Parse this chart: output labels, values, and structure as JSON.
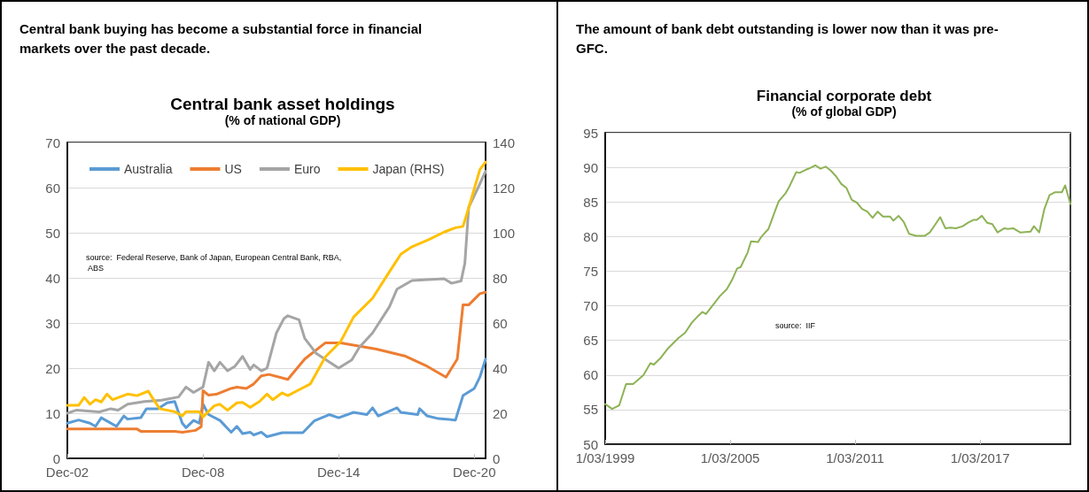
{
  "chart_data": [
    {
      "type": "line",
      "title": "Central bank asset holdings",
      "subtitle": "(% of national GDP)",
      "annotations": [
        "Central bank buying has become a substantial force in financial markets over the past decade.",
        "source:  Federal Reserve, Bank of Japan, European Central Bank, RBA, ABS"
      ],
      "xlim": [
        "2002-12",
        "2021-06"
      ],
      "xticks": [
        {
          "value": "2002-12",
          "label": "Dec-02"
        },
        {
          "value": "2008-12",
          "label": "Dec-08"
        },
        {
          "value": "2014-12",
          "label": "Dec-14"
        },
        {
          "value": "2020-12",
          "label": "Dec-20"
        }
      ],
      "ylim": [
        0,
        70
      ],
      "yticks": [
        0,
        10,
        20,
        30,
        40,
        50,
        60,
        70
      ],
      "y2lim": [
        0,
        140
      ],
      "y2ticks": [
        0,
        20,
        40,
        60,
        80,
        100,
        120,
        140
      ],
      "grid": "y",
      "legend": "top",
      "marker": "none",
      "line_style": "solid",
      "series": [
        {
          "name": "Australia",
          "color": "#5b9bd5",
          "x": [
            "2002-12",
            "2003-06",
            "2003-12",
            "2004-03",
            "2004-06",
            "2005-02",
            "2005-06",
            "2005-08",
            "2006-03",
            "2006-06",
            "2006-12",
            "2007-05",
            "2007-09",
            "2008-01",
            "2008-03",
            "2008-07",
            "2008-10",
            "2008-12",
            "2009-03",
            "2009-09",
            "2010-03",
            "2010-06",
            "2010-09",
            "2011-01",
            "2011-03",
            "2011-07",
            "2011-10",
            "2012-06",
            "2013-05",
            "2013-11",
            "2014-07",
            "2014-12",
            "2015-08",
            "2016-03",
            "2016-06",
            "2016-09",
            "2017-07",
            "2017-09",
            "2018-06",
            "2018-07",
            "2018-11",
            "2019-05",
            "2020-02",
            "2020-06",
            "2020-12",
            "2021-03",
            "2021-06"
          ],
          "values": [
            7.8,
            8.5,
            7.8,
            7.1,
            9,
            7.1,
            9.4,
            8.7,
            9,
            11,
            11,
            12.3,
            12.6,
            7.8,
            6.8,
            8.4,
            7.8,
            12,
            9.7,
            8.4,
            5.8,
            7.1,
            5.5,
            5.8,
            5.2,
            5.8,
            4.8,
            5.7,
            5.7,
            8.3,
            9.7,
            9,
            10.2,
            9.7,
            11.2,
            9.4,
            11.2,
            10.2,
            9.7,
            11,
            9.4,
            8.8,
            8.5,
            13.9,
            15.5,
            18,
            22
          ]
        },
        {
          "name": "US",
          "color": "#ed7d31",
          "x": [
            "2002-12",
            "2006-01",
            "2006-03",
            "2007-09",
            "2008-01",
            "2008-08",
            "2008-11",
            "2008-12",
            "2009-03",
            "2009-07",
            "2010-03",
            "2010-06",
            "2010-11",
            "2011-03",
            "2011-07",
            "2011-11",
            "2012-09",
            "2013-06",
            "2014-05",
            "2015-01",
            "2016-08",
            "2017-11",
            "2018-11",
            "2019-09",
            "2020-03",
            "2020-06",
            "2020-09",
            "2021-03",
            "2021-06"
          ],
          "values": [
            6.5,
            6.5,
            6,
            6,
            5.8,
            6.2,
            7,
            15,
            14,
            14.2,
            15.5,
            15.8,
            15.5,
            16.5,
            18.3,
            18.6,
            17.5,
            22,
            25.6,
            25.6,
            24.2,
            22.7,
            20.4,
            18,
            22,
            34,
            34,
            36.5,
            36.8
          ]
        },
        {
          "name": "Euro",
          "color": "#a5a5a5",
          "x": [
            "2002-12",
            "2003-05",
            "2004-05",
            "2004-11",
            "2005-03",
            "2005-08",
            "2006-05",
            "2007-02",
            "2007-11",
            "2008-03",
            "2008-07",
            "2008-12",
            "2009-03",
            "2009-06",
            "2009-09",
            "2010-01",
            "2010-05",
            "2010-09",
            "2011-01",
            "2011-03",
            "2011-07",
            "2011-10",
            "2012-03",
            "2012-07",
            "2012-09",
            "2013-03",
            "2013-06",
            "2013-12",
            "2014-12",
            "2015-07",
            "2015-11",
            "2016-06",
            "2017-03",
            "2017-07",
            "2018-03",
            "2019-08",
            "2019-12",
            "2020-05",
            "2020-07",
            "2020-09",
            "2021-02",
            "2021-06"
          ],
          "values": [
            10,
            10.7,
            10.3,
            11,
            10.7,
            12,
            12.6,
            12.9,
            13.6,
            15.8,
            14.6,
            15.8,
            21.3,
            19.4,
            21.3,
            19.4,
            20.4,
            22.6,
            19.7,
            20.7,
            19.4,
            20,
            27.8,
            31,
            31.6,
            30.7,
            26.6,
            23.3,
            20,
            21.8,
            24.6,
            27.8,
            33.6,
            37.5,
            39.4,
            39.8,
            38.8,
            39.3,
            43.2,
            55.6,
            60,
            63.6
          ]
        },
        {
          "name": "Japan (RHS)",
          "color": "#ffc000",
          "axis": "y2",
          "x": [
            "2002-12",
            "2003-06",
            "2003-09",
            "2003-12",
            "2004-03",
            "2004-06",
            "2004-09",
            "2004-12",
            "2005-08",
            "2006-01",
            "2006-07",
            "2006-09",
            "2007-01",
            "2007-09",
            "2008-01",
            "2008-03",
            "2008-10",
            "2008-12",
            "2009-06",
            "2009-09",
            "2010-01",
            "2010-06",
            "2010-09",
            "2011-01",
            "2011-06",
            "2011-10",
            "2012-01",
            "2012-06",
            "2012-09",
            "2013-03",
            "2013-09",
            "2014-05",
            "2015-01",
            "2015-08",
            "2016-06",
            "2017-02",
            "2017-09",
            "2018-03",
            "2018-12",
            "2019-08",
            "2020-02",
            "2020-06",
            "2020-09",
            "2021-03",
            "2021-06"
          ],
          "values": [
            23.5,
            23.5,
            27,
            24,
            26,
            25,
            28.5,
            26,
            28.5,
            27.8,
            29.8,
            27,
            22,
            20.7,
            18.8,
            20.7,
            20.7,
            18.4,
            23.3,
            24,
            21.3,
            24.6,
            24.8,
            22.6,
            25.2,
            28.5,
            26,
            29,
            27.8,
            30.4,
            33,
            45,
            51.7,
            62.7,
            71,
            81.5,
            90.5,
            93.8,
            97,
            100.3,
            102.2,
            102.8,
            111,
            128,
            131.3
          ]
        }
      ]
    },
    {
      "type": "line",
      "title": "Financial corporate debt",
      "subtitle": "(% of global GDP)",
      "annotations": [
        "The amount of bank debt outstanding is lower now than it was pre-GFC.",
        "source:  IIF"
      ],
      "xlim": [
        "1999-03-01",
        "2021-07"
      ],
      "xticks": [
        {
          "value": "1999-03-01",
          "label": "1/03/1999"
        },
        {
          "value": "2005-03-01",
          "label": "1/03/2005"
        },
        {
          "value": "2011-03-01",
          "label": "1/03/2011"
        },
        {
          "value": "2017-03-01",
          "label": "1/03/2017"
        }
      ],
      "ylim": [
        50,
        95
      ],
      "yticks": [
        50,
        55,
        60,
        65,
        70,
        75,
        80,
        85,
        90,
        95
      ],
      "grid": "y",
      "marker": "none",
      "line_style": "solid",
      "series": [
        {
          "color": "#8db255",
          "x": [
            "1999-03",
            "1999-07",
            "1999-11",
            "2000-03",
            "2000-07",
            "2000-09",
            "2001-01",
            "2001-05",
            "2001-07",
            "2001-11",
            "2002-03",
            "2002-07",
            "2002-09",
            "2003-01",
            "2003-05",
            "2003-08",
            "2003-11",
            "2004-01",
            "2004-05",
            "2004-09",
            "2005-01",
            "2005-04",
            "2005-07",
            "2005-09",
            "2006-01",
            "2006-03",
            "2006-07",
            "2006-09",
            "2007-01",
            "2007-05",
            "2007-07",
            "2007-11",
            "2008-01",
            "2008-05",
            "2008-07",
            "2008-11",
            "2009-01",
            "2009-04",
            "2009-07",
            "2009-10",
            "2010-01",
            "2010-04",
            "2010-07",
            "2010-10",
            "2011-01",
            "2011-04",
            "2011-07",
            "2011-10",
            "2012-01",
            "2012-04",
            "2012-07",
            "2012-11",
            "2013-01",
            "2013-04",
            "2013-07",
            "2013-10",
            "2014-02",
            "2014-07",
            "2014-10",
            "2015-01",
            "2015-04",
            "2015-07",
            "2015-10",
            "2016-01",
            "2016-05",
            "2016-08",
            "2016-11",
            "2017-01",
            "2017-04",
            "2017-07",
            "2017-10",
            "2018-01",
            "2018-05",
            "2018-07",
            "2018-10",
            "2019-02",
            "2019-08",
            "2019-10",
            "2020-01",
            "2020-04",
            "2020-07",
            "2020-10",
            "2021-02",
            "2021-04",
            "2021-07"
          ],
          "values": [
            55.8,
            55.1,
            55.6,
            58.7,
            58.7,
            59.1,
            60.0,
            61.7,
            61.5,
            62.5,
            63.8,
            64.8,
            65.3,
            66.1,
            67.6,
            68.4,
            69.1,
            68.8,
            70.1,
            71.4,
            72.4,
            73.7,
            75.4,
            75.6,
            77.7,
            79.3,
            79.2,
            80.0,
            81.1,
            83.8,
            85.1,
            86.3,
            87.2,
            89.3,
            89.2,
            89.7,
            89.9,
            90.3,
            89.8,
            90.1,
            89.5,
            88.7,
            87.6,
            87.0,
            85.3,
            84.9,
            84.0,
            83.6,
            82.7,
            83.6,
            82.9,
            82.9,
            82.3,
            83.0,
            82.1,
            80.4,
            80.1,
            80.1,
            80.6,
            81.7,
            82.8,
            81.2,
            81.3,
            81.2,
            81.5,
            82.0,
            82.4,
            82.4,
            83.0,
            82.0,
            81.8,
            80.6,
            81.2,
            81.1,
            81.2,
            80.6,
            80.7,
            81.5,
            80.6,
            84.0,
            86.0,
            86.4,
            86.4,
            87.4,
            84.7
          ]
        }
      ]
    }
  ]
}
